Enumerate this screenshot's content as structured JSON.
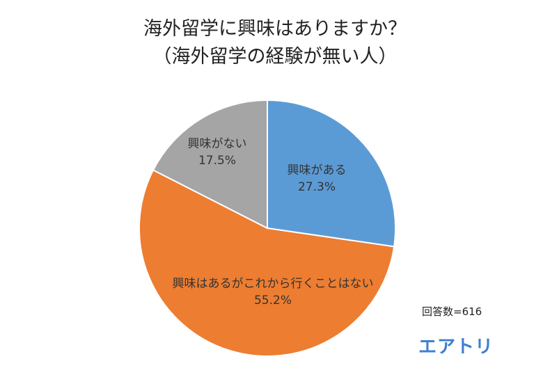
{
  "title_line1": "海外留学に興味はありますか？",
  "title_line2": "（海外留学の経験が無い人）",
  "sample_note": "回答数=616",
  "brand": "エアトリ",
  "chart_data": {
    "type": "pie",
    "title": "海外留学に興味はありますか？（海外留学の経験が無い人）",
    "slices": [
      {
        "label": "興味がある",
        "value": 27.3,
        "display": "27.3%",
        "color": "#5b9bd5"
      },
      {
        "label": "興味はあるがこれから行くことはない",
        "value": 55.2,
        "display": "55.2%",
        "color": "#ed7d31"
      },
      {
        "label": "興味がない",
        "value": 17.5,
        "display": "17.5%",
        "color": "#a5a5a5"
      }
    ],
    "start": "12 o'clock, clockwise",
    "legend": "none (labels on slices)"
  }
}
